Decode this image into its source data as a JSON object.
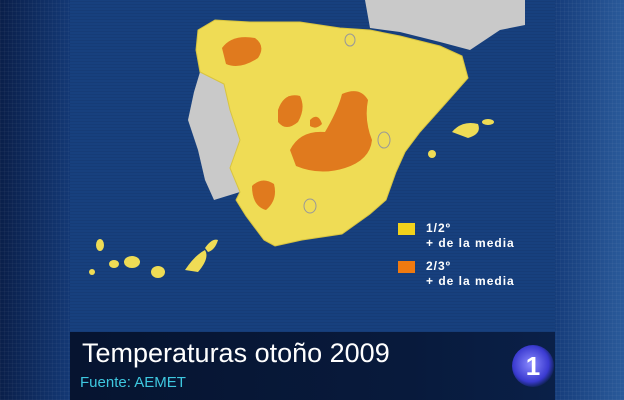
{
  "title": "Temperaturas otoño 2009",
  "source": "Fuente: AEMET",
  "channel_logo": "1",
  "legend": [
    {
      "label_line1": "1/2º",
      "label_line2": "+ de la media",
      "color": "#f2d21a"
    },
    {
      "label_line1": "2/3º",
      "label_line2": "+ de la media",
      "color": "#f07a10"
    }
  ],
  "colors": {
    "spain": "#efdc55",
    "anomaly_high": "#e07a1e",
    "neighbors": "#c9c9c9",
    "sea": "#17407e"
  }
}
